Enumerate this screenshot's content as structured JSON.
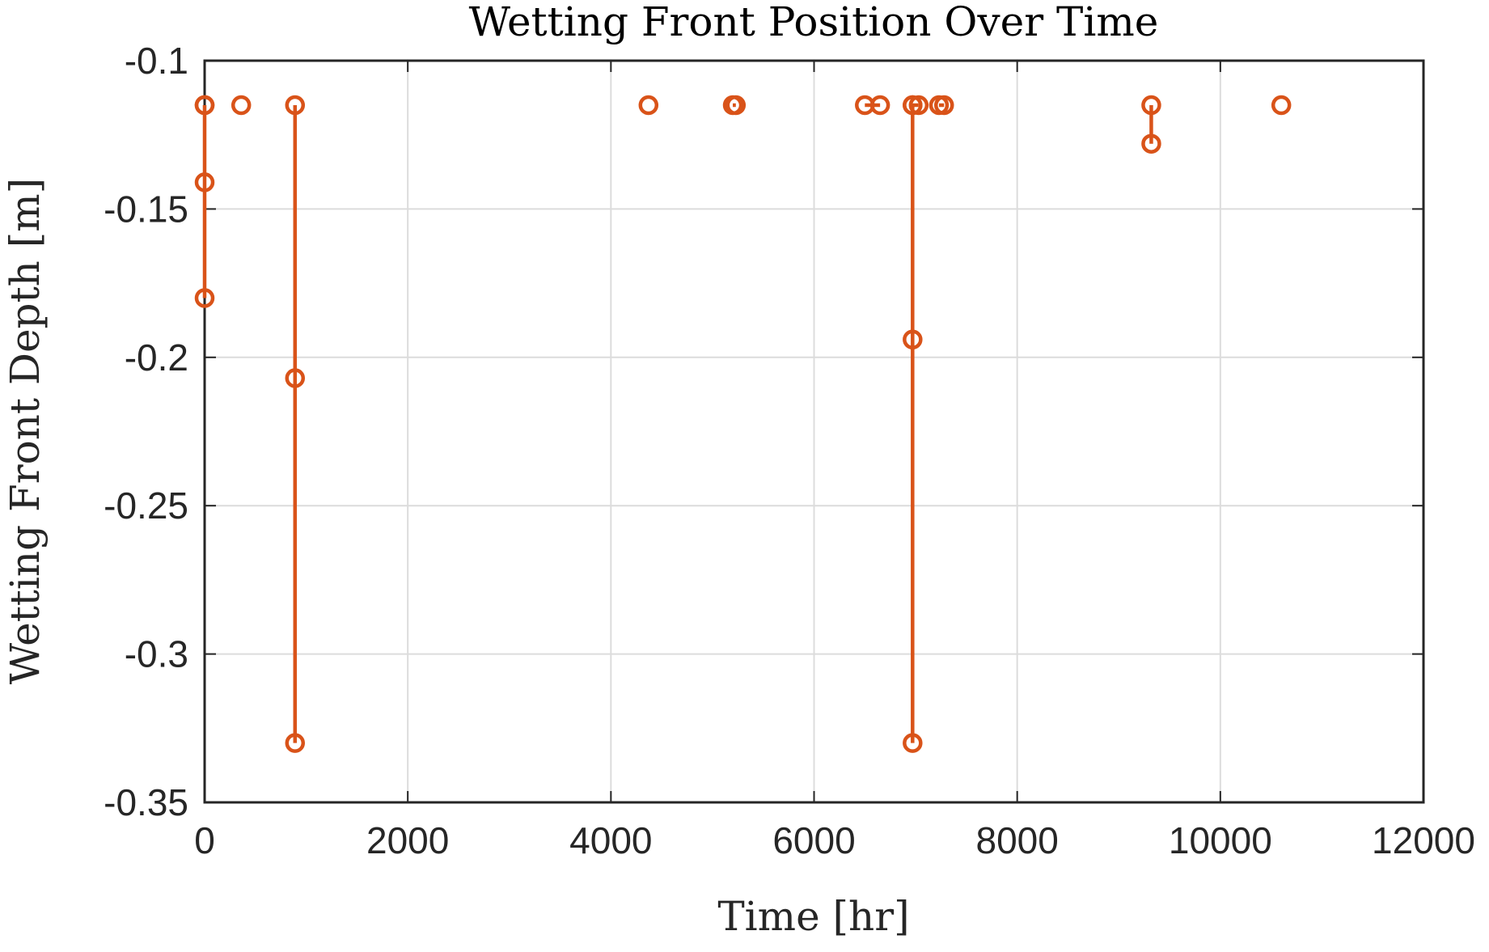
{
  "chart_data": {
    "type": "line",
    "title": "Wetting Front Position Over Time",
    "xlabel": "Time [hr]",
    "ylabel": "Wetting Front Depth [m]",
    "xlim": [
      0,
      12000
    ],
    "ylim": [
      -0.35,
      -0.1
    ],
    "xticks": [
      0,
      2000,
      4000,
      6000,
      8000,
      10000,
      12000
    ],
    "xtick_labels": [
      "0",
      "2000",
      "4000",
      "6000",
      "8000",
      "10000",
      "12000"
    ],
    "yticks": [
      -0.1,
      -0.15,
      -0.2,
      -0.25,
      -0.3,
      -0.35
    ],
    "ytick_labels": [
      "-0.1",
      "-0.15",
      "-0.2",
      "-0.25",
      "-0.3",
      "-0.35"
    ],
    "grid": true,
    "series_color": "#d95319",
    "series": [
      {
        "x": [
          0,
          0,
          0,
          0
        ],
        "y": [
          -0.115,
          -0.141,
          -0.18,
          -0.115
        ]
      },
      {
        "x": [
          360
        ],
        "y": [
          -0.115
        ]
      },
      {
        "x": [
          890,
          890,
          890
        ],
        "y": [
          -0.115,
          -0.207,
          -0.33
        ]
      },
      {
        "x": [
          4370
        ],
        "y": [
          -0.115
        ]
      },
      {
        "x": [
          5200,
          5230
        ],
        "y": [
          -0.115,
          -0.115
        ]
      },
      {
        "x": [
          6500,
          6650
        ],
        "y": [
          -0.115,
          -0.115
        ]
      },
      {
        "x": [
          6970,
          6970,
          6970,
          6970,
          7030
        ],
        "y": [
          -0.115,
          -0.33,
          -0.194,
          -0.115,
          -0.115
        ]
      },
      {
        "x": [
          7230,
          7280
        ],
        "y": [
          -0.115,
          -0.115
        ]
      },
      {
        "x": [
          9320,
          9320
        ],
        "y": [
          -0.115,
          -0.128
        ]
      },
      {
        "x": [
          10600
        ],
        "y": [
          -0.115
        ]
      }
    ]
  }
}
